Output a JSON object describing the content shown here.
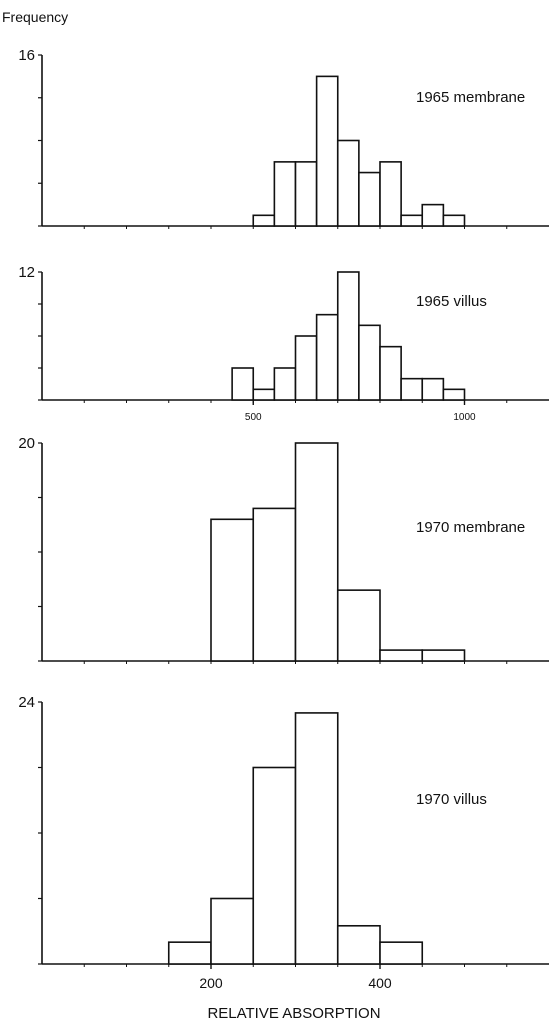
{
  "ylabel": "Frequency",
  "xlabel": "RELATIVE ABSORPTION",
  "colors": {
    "ink": "#111111",
    "bar_fill": "#ffffff"
  },
  "chart_data": [
    {
      "type": "bar",
      "title": "1965 membrane",
      "ymax_label": "16",
      "ylim": [
        0,
        16
      ],
      "xlim": [
        0,
        1200
      ],
      "bar_width": 50,
      "x": [
        525,
        575,
        625,
        675,
        725,
        775,
        825,
        875,
        925,
        975
      ],
      "values": [
        1,
        6,
        6,
        14,
        8,
        5,
        6,
        1,
        2,
        1
      ],
      "x_ticks": [],
      "y_ticks": [
        0,
        4,
        8,
        12,
        16
      ]
    },
    {
      "type": "bar",
      "title": "1965 villus",
      "ymax_label": "12",
      "ylim": [
        0,
        12
      ],
      "xlim": [
        0,
        1200
      ],
      "bar_width": 50,
      "x": [
        475,
        525,
        575,
        625,
        675,
        725,
        775,
        825,
        875,
        925,
        975
      ],
      "values": [
        3,
        1,
        3,
        6,
        8,
        12,
        7,
        5,
        2,
        2,
        1
      ],
      "x_ticks": [
        500,
        1000
      ],
      "y_ticks": [
        0,
        3,
        6,
        9,
        12
      ]
    },
    {
      "type": "bar",
      "title": "1970 membrane",
      "ymax_label": "20",
      "ylim": [
        0,
        20
      ],
      "xlim": [
        0,
        600
      ],
      "bar_width": 50,
      "x": [
        225,
        275,
        325,
        375,
        425,
        475
      ],
      "values": [
        13,
        14,
        20,
        6.5,
        1,
        1
      ],
      "x_ticks": [],
      "y_ticks": [
        0,
        5,
        10,
        15,
        20
      ]
    },
    {
      "type": "bar",
      "title": "1970  villus",
      "ymax_label": "24",
      "ylim": [
        0,
        24
      ],
      "xlim": [
        0,
        600
      ],
      "bar_width": 50,
      "x": [
        175,
        225,
        275,
        325,
        375,
        425
      ],
      "values": [
        2,
        6,
        18,
        23,
        3.5,
        2
      ],
      "x_ticks": [
        200,
        400
      ],
      "y_ticks": [
        0,
        6,
        12,
        18,
        24
      ]
    }
  ]
}
